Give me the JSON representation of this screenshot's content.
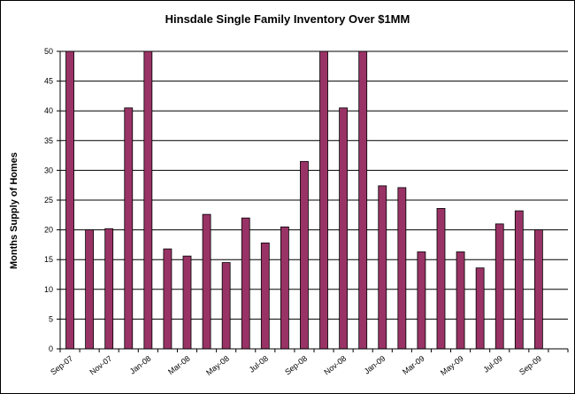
{
  "chart_data": {
    "type": "bar",
    "title": "Hinsdale Single Family Inventory Over $1MM",
    "xlabel": "",
    "ylabel": "Months Supply of Homes",
    "ylim": [
      0,
      50
    ],
    "yticks": [
      0,
      5,
      10,
      15,
      20,
      25,
      30,
      35,
      40,
      45,
      50
    ],
    "grid": true,
    "legend": "none",
    "bar_color": "#993366",
    "categories": [
      "Sep-07",
      "Oct-07",
      "Nov-07",
      "Dec-07",
      "Jan-08",
      "Feb-08",
      "Mar-08",
      "Apr-08",
      "May-08",
      "Jun-08",
      "Jul-08",
      "Aug-08",
      "Sep-08",
      "Oct-08",
      "Nov-08",
      "Dec-08",
      "Jan-09",
      "Feb-09",
      "Mar-09",
      "Apr-09",
      "May-09",
      "Jun-09",
      "Jul-09",
      "Aug-09",
      "Sep-09",
      "Oct-09"
    ],
    "tick_labels": [
      "Sep-07",
      "",
      "Nov-07",
      "",
      "Jan-08",
      "",
      "Mar-08",
      "",
      "May-08",
      "",
      "Jul-08",
      "",
      "Sep-08",
      "",
      "Nov-08",
      "",
      "Jan-09",
      "",
      "Mar-09",
      "",
      "May-09",
      "",
      "Jul-09",
      "",
      "Sep-09",
      ""
    ],
    "values": [
      50,
      20,
      20.2,
      40.5,
      50,
      16.8,
      15.6,
      22.6,
      14.5,
      22,
      17.8,
      20.5,
      31.5,
      50,
      40.5,
      50,
      27.4,
      27.1,
      16.3,
      23.6,
      16.3,
      13.6,
      21,
      23.2,
      20,
      0
    ]
  }
}
